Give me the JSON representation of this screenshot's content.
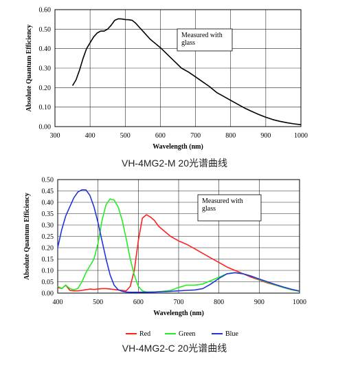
{
  "chart_data": [
    {
      "type": "line",
      "xlabel": "Wavelength (nm)",
      "ylabel": "Absolute Quantum Efficiency",
      "xlim": [
        300,
        1000
      ],
      "ylim": [
        0,
        0.6
      ],
      "x_ticks": [
        "300",
        "400",
        "500",
        "600",
        "700",
        "800",
        "900",
        "1000"
      ],
      "y_ticks": [
        "0.00",
        "0.10",
        "0.20",
        "0.30",
        "0.40",
        "0.50",
        "0.60"
      ],
      "annotation": [
        "Measured with",
        "glass"
      ],
      "caption": "VH-4MG2-M 20光谱曲线",
      "grid": true,
      "series": [
        {
          "color": "#000000",
          "x": [
            350,
            360,
            370,
            380,
            390,
            400,
            410,
            420,
            430,
            440,
            450,
            460,
            470,
            480,
            490,
            500,
            510,
            520,
            530,
            540,
            550,
            560,
            570,
            580,
            590,
            600,
            620,
            640,
            660,
            680,
            700,
            720,
            740,
            760,
            780,
            800,
            820,
            840,
            860,
            880,
            900,
            920,
            940,
            960,
            980,
            1000
          ],
          "y": [
            0.21,
            0.24,
            0.29,
            0.35,
            0.4,
            0.43,
            0.46,
            0.48,
            0.49,
            0.49,
            0.5,
            0.52,
            0.545,
            0.553,
            0.552,
            0.549,
            0.548,
            0.545,
            0.53,
            0.51,
            0.49,
            0.47,
            0.45,
            0.435,
            0.42,
            0.405,
            0.37,
            0.335,
            0.3,
            0.28,
            0.255,
            0.23,
            0.205,
            0.175,
            0.155,
            0.135,
            0.115,
            0.095,
            0.078,
            0.062,
            0.048,
            0.036,
            0.027,
            0.02,
            0.014,
            0.01
          ]
        }
      ]
    },
    {
      "type": "line",
      "xlabel": "Wavelength (nm)",
      "ylabel": "Absolute Quantum Efficiency",
      "xlim": [
        400,
        1000
      ],
      "ylim": [
        0,
        0.5
      ],
      "x_ticks": [
        "400",
        "500",
        "600",
        "700",
        "800",
        "900",
        "1000"
      ],
      "y_ticks": [
        "0.00",
        "0.05",
        "0.10",
        "0.15",
        "0.20",
        "0.25",
        "0.30",
        "0.35",
        "0.40",
        "0.45",
        "0.50"
      ],
      "annotation": [
        "Measured with",
        "glass"
      ],
      "caption": "VH-4MG2-C 20光谱曲线",
      "grid": true,
      "legend": "bottom",
      "series": [
        {
          "name": "Red",
          "color": "#ff2020",
          "x": [
            400,
            410,
            420,
            430,
            440,
            450,
            460,
            470,
            480,
            490,
            500,
            510,
            520,
            530,
            540,
            550,
            560,
            570,
            580,
            590,
            600,
            610,
            620,
            630,
            640,
            650,
            660,
            670,
            680,
            690,
            700,
            720,
            740,
            760,
            780,
            800,
            820,
            840,
            860,
            880,
            900,
            920,
            940,
            960,
            980,
            1000
          ],
          "y": [
            0.025,
            0.02,
            0.035,
            0.012,
            0.01,
            0.01,
            0.012,
            0.015,
            0.018,
            0.016,
            0.018,
            0.02,
            0.02,
            0.018,
            0.016,
            0.014,
            0.012,
            0.01,
            0.03,
            0.1,
            0.23,
            0.33,
            0.345,
            0.335,
            0.32,
            0.295,
            0.28,
            0.265,
            0.25,
            0.24,
            0.23,
            0.215,
            0.195,
            0.175,
            0.155,
            0.135,
            0.115,
            0.1,
            0.085,
            0.07,
            0.058,
            0.045,
            0.035,
            0.025,
            0.015,
            0.008
          ]
        },
        {
          "name": "Green",
          "color": "#22ee22",
          "x": [
            400,
            410,
            420,
            430,
            440,
            450,
            460,
            470,
            480,
            490,
            500,
            510,
            520,
            530,
            540,
            550,
            560,
            570,
            580,
            590,
            600,
            610,
            620,
            640,
            660,
            680,
            700,
            720,
            740,
            760,
            780,
            800,
            820,
            840,
            860,
            880,
            900,
            920,
            940,
            960,
            980,
            1000
          ],
          "y": [
            0.03,
            0.02,
            0.035,
            0.02,
            0.015,
            0.02,
            0.05,
            0.09,
            0.12,
            0.15,
            0.22,
            0.32,
            0.39,
            0.415,
            0.41,
            0.38,
            0.32,
            0.24,
            0.15,
            0.08,
            0.03,
            0.01,
            0.005,
            0.005,
            0.008,
            0.012,
            0.025,
            0.035,
            0.035,
            0.04,
            0.055,
            0.07,
            0.085,
            0.09,
            0.085,
            0.075,
            0.06,
            0.048,
            0.036,
            0.025,
            0.015,
            0.008
          ]
        },
        {
          "name": "Blue",
          "color": "#2233dd",
          "x": [
            400,
            410,
            420,
            430,
            440,
            450,
            460,
            470,
            480,
            490,
            500,
            510,
            520,
            530,
            540,
            550,
            560,
            570,
            580,
            590,
            600,
            620,
            640,
            660,
            680,
            700,
            720,
            740,
            760,
            780,
            800,
            820,
            840,
            860,
            880,
            900,
            920,
            940,
            960,
            980,
            1000
          ],
          "y": [
            0.2,
            0.28,
            0.34,
            0.38,
            0.42,
            0.445,
            0.455,
            0.455,
            0.43,
            0.38,
            0.31,
            0.23,
            0.15,
            0.08,
            0.035,
            0.015,
            0.008,
            0.005,
            0.004,
            0.004,
            0.004,
            0.004,
            0.005,
            0.006,
            0.008,
            0.01,
            0.012,
            0.014,
            0.02,
            0.04,
            0.065,
            0.085,
            0.09,
            0.085,
            0.075,
            0.062,
            0.05,
            0.038,
            0.027,
            0.017,
            0.009
          ]
        }
      ]
    }
  ]
}
